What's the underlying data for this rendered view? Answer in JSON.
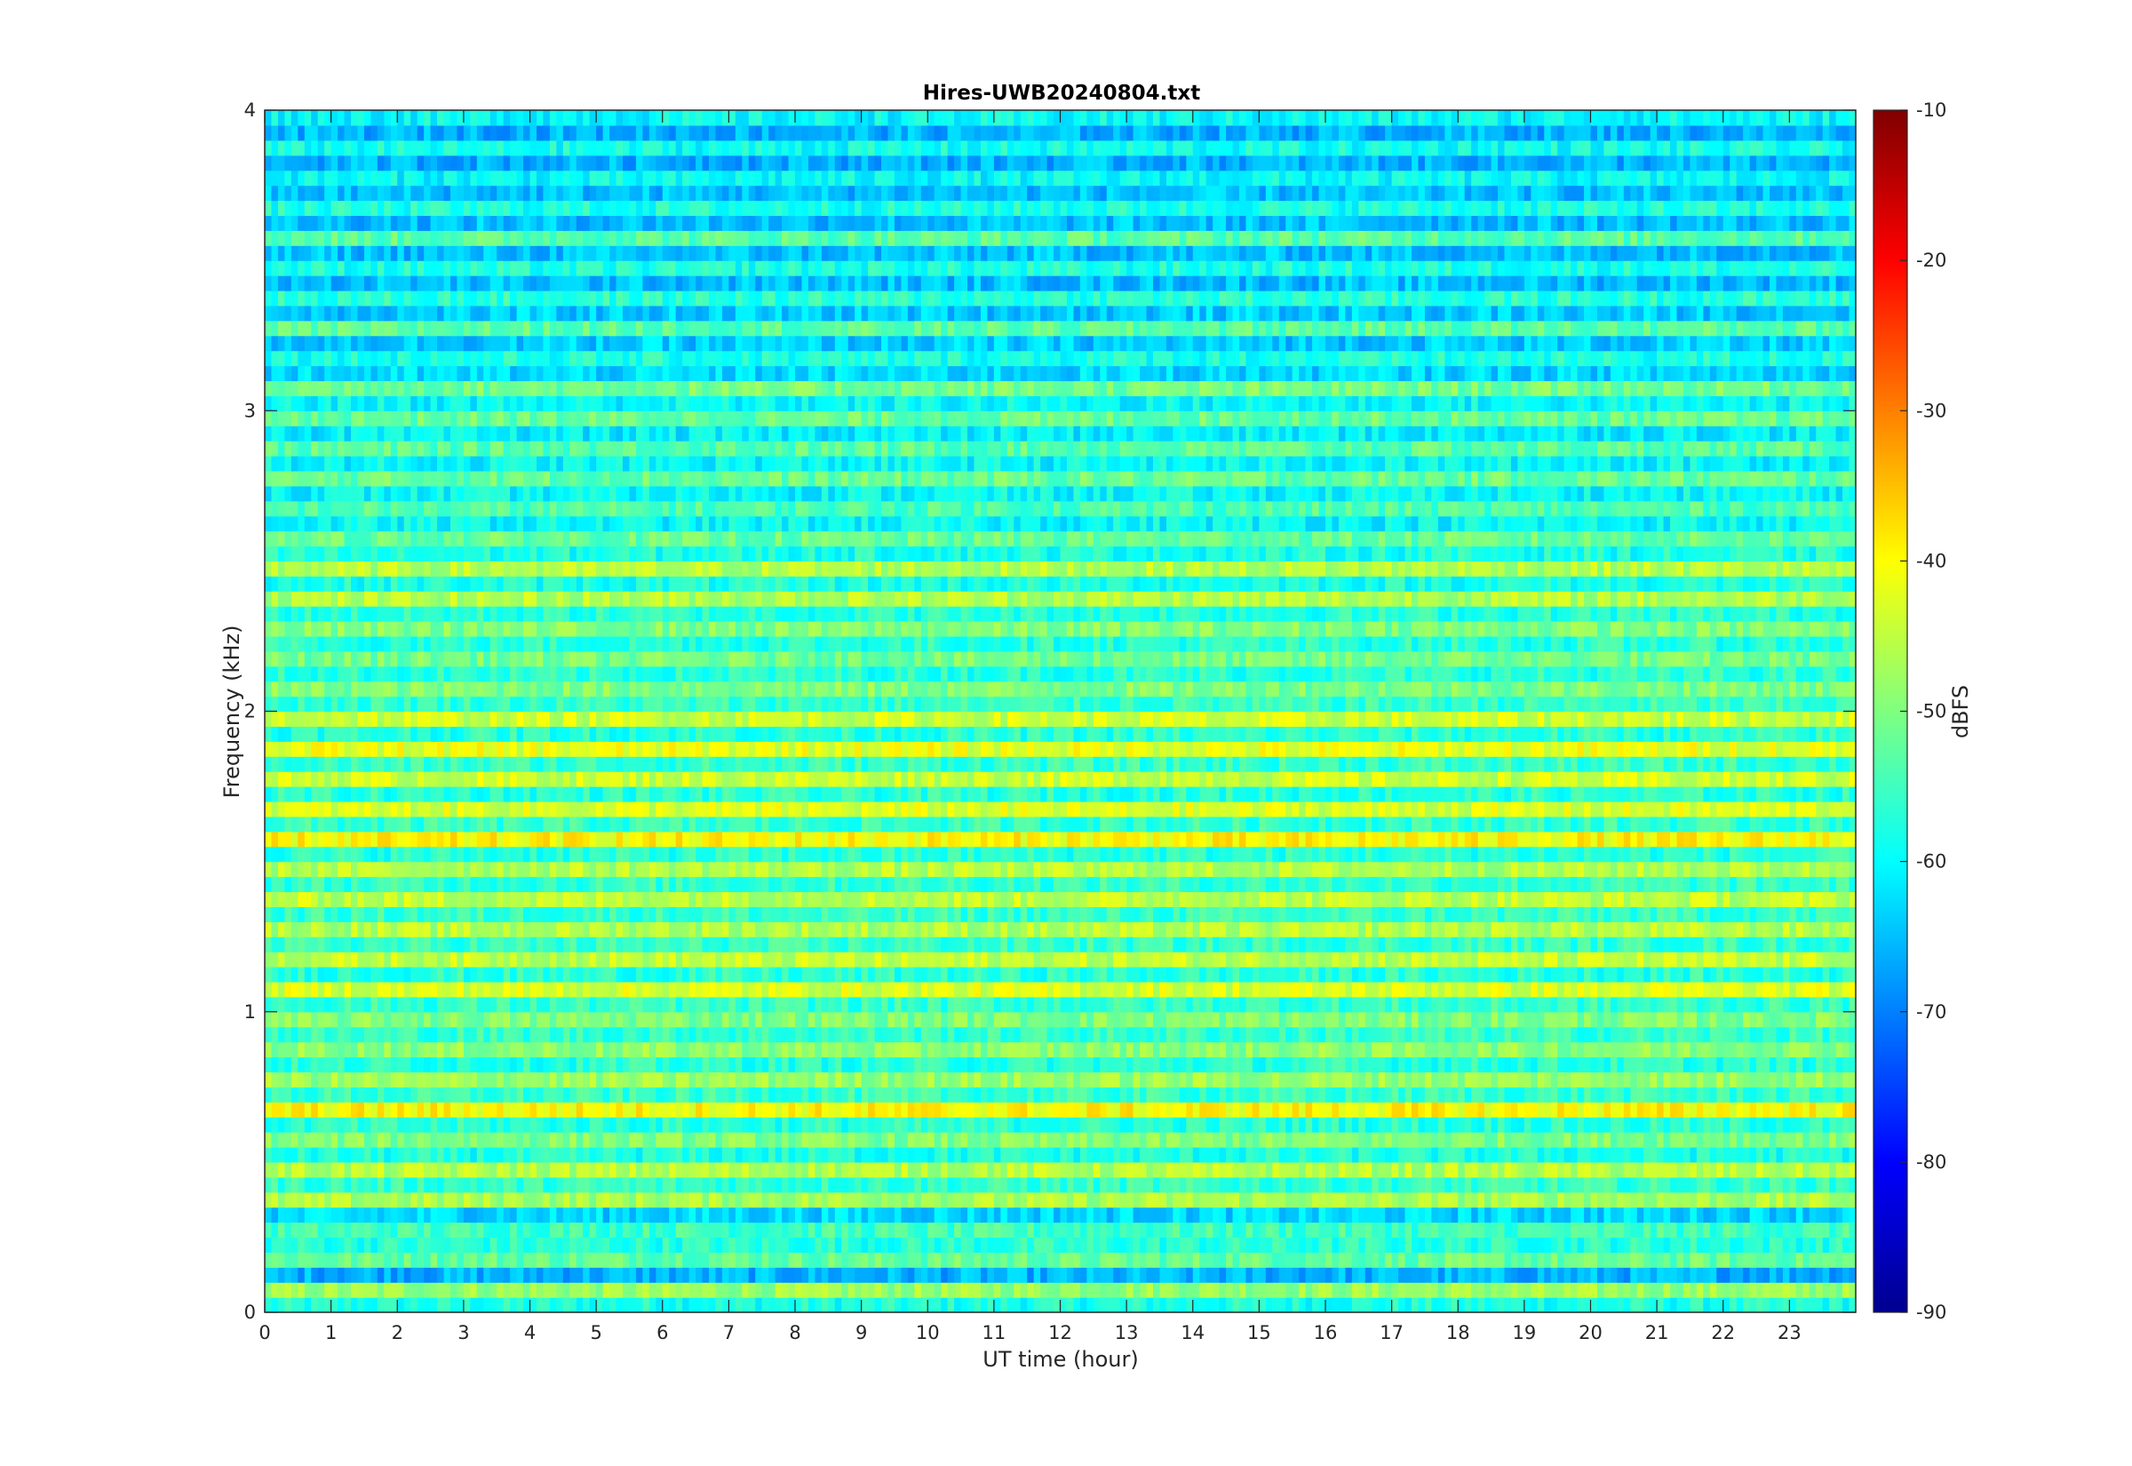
{
  "chart_data": {
    "type": "heatmap",
    "title": "Hires-UWB20240804.txt",
    "xlabel": "UT time (hour)",
    "ylabel": "Frequency (kHz)",
    "xlim": [
      0,
      24
    ],
    "ylim": [
      0,
      4
    ],
    "x_ticks": [
      0,
      1,
      2,
      3,
      4,
      5,
      6,
      7,
      8,
      9,
      10,
      11,
      12,
      13,
      14,
      15,
      16,
      17,
      18,
      19,
      20,
      21,
      22,
      23
    ],
    "y_ticks": [
      0,
      1,
      2,
      3,
      4
    ],
    "colorbar": {
      "label": "dBFS",
      "colormap": "jet",
      "limits": [
        -90,
        -10
      ],
      "ticks": [
        -90,
        -80,
        -70,
        -60,
        -50,
        -40,
        -30,
        -20,
        -10
      ]
    },
    "row_level_dbfs": [
      [
        0.0,
        -58
      ],
      [
        0.05,
        -48
      ],
      [
        0.1,
        -66
      ],
      [
        0.15,
        -52
      ],
      [
        0.2,
        -57
      ],
      [
        0.25,
        -55
      ],
      [
        0.3,
        -63
      ],
      [
        0.35,
        -47
      ],
      [
        0.4,
        -56
      ],
      [
        0.45,
        -46
      ],
      [
        0.5,
        -58
      ],
      [
        0.55,
        -50
      ],
      [
        0.6,
        -57
      ],
      [
        0.65,
        -40
      ],
      [
        0.7,
        -56
      ],
      [
        0.75,
        -48
      ],
      [
        0.8,
        -57
      ],
      [
        0.85,
        -49
      ],
      [
        0.9,
        -56
      ],
      [
        0.95,
        -50
      ],
      [
        1.0,
        -56
      ],
      [
        1.05,
        -43
      ],
      [
        1.1,
        -57
      ],
      [
        1.15,
        -45
      ],
      [
        1.2,
        -56
      ],
      [
        1.25,
        -46
      ],
      [
        1.3,
        -56
      ],
      [
        1.35,
        -45
      ],
      [
        1.4,
        -56
      ],
      [
        1.45,
        -46
      ],
      [
        1.5,
        -57
      ],
      [
        1.55,
        -40
      ],
      [
        1.6,
        -56
      ],
      [
        1.65,
        -43
      ],
      [
        1.7,
        -57
      ],
      [
        1.75,
        -44
      ],
      [
        1.8,
        -56
      ],
      [
        1.85,
        -42
      ],
      [
        1.9,
        -57
      ],
      [
        1.95,
        -44
      ],
      [
        2.0,
        -56
      ],
      [
        2.05,
        -50
      ],
      [
        2.1,
        -57
      ],
      [
        2.15,
        -51
      ],
      [
        2.2,
        -57
      ],
      [
        2.25,
        -50
      ],
      [
        2.3,
        -57
      ],
      [
        2.35,
        -46
      ],
      [
        2.4,
        -58
      ],
      [
        2.45,
        -46
      ],
      [
        2.5,
        -58
      ],
      [
        2.55,
        -52
      ],
      [
        2.6,
        -60
      ],
      [
        2.65,
        -54
      ],
      [
        2.7,
        -60
      ],
      [
        2.75,
        -52
      ],
      [
        2.8,
        -60
      ],
      [
        2.85,
        -53
      ],
      [
        2.9,
        -61
      ],
      [
        2.95,
        -52
      ],
      [
        3.0,
        -60
      ],
      [
        3.05,
        -51
      ],
      [
        3.1,
        -63
      ],
      [
        3.15,
        -58
      ],
      [
        3.2,
        -64
      ],
      [
        3.25,
        -53
      ],
      [
        3.3,
        -64
      ],
      [
        3.35,
        -57
      ],
      [
        3.4,
        -65
      ],
      [
        3.45,
        -58
      ],
      [
        3.5,
        -65
      ],
      [
        3.55,
        -53
      ],
      [
        3.6,
        -65
      ],
      [
        3.65,
        -58
      ],
      [
        3.7,
        -65
      ],
      [
        3.75,
        -60
      ],
      [
        3.8,
        -66
      ],
      [
        3.85,
        -59
      ],
      [
        3.9,
        -66
      ],
      [
        3.95,
        -60
      ]
    ]
  }
}
